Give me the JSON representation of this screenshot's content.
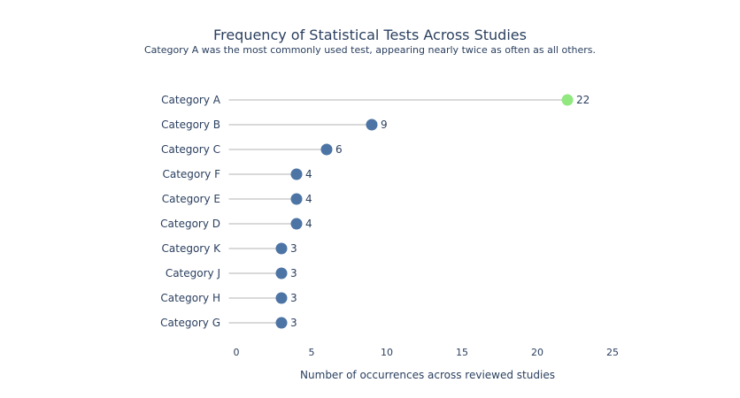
{
  "chart_data": {
    "type": "lollipop",
    "title": "Frequency of Statistical Tests Across Studies",
    "subtitle": "Category A was the most commonly used test, appearing nearly twice as often as all others.",
    "xlabel": "Number of occurrences across reviewed studies",
    "ylabel": "",
    "xlim": [
      -0.5,
      25
    ],
    "xticks": [
      0,
      5,
      10,
      15,
      20,
      25
    ],
    "grid": false,
    "categories": [
      "Category A",
      "Category B",
      "Category C",
      "Category F",
      "Category E",
      "Category D",
      "Category K",
      "Category J",
      "Category H",
      "Category G"
    ],
    "values": [
      22,
      9,
      6,
      4,
      4,
      4,
      3,
      3,
      3,
      3
    ],
    "highlight_color": "#90e87f",
    "base_color": "#4c74a4",
    "stem_color": "#d9d9d9",
    "text_color": "#2a3f5f"
  }
}
